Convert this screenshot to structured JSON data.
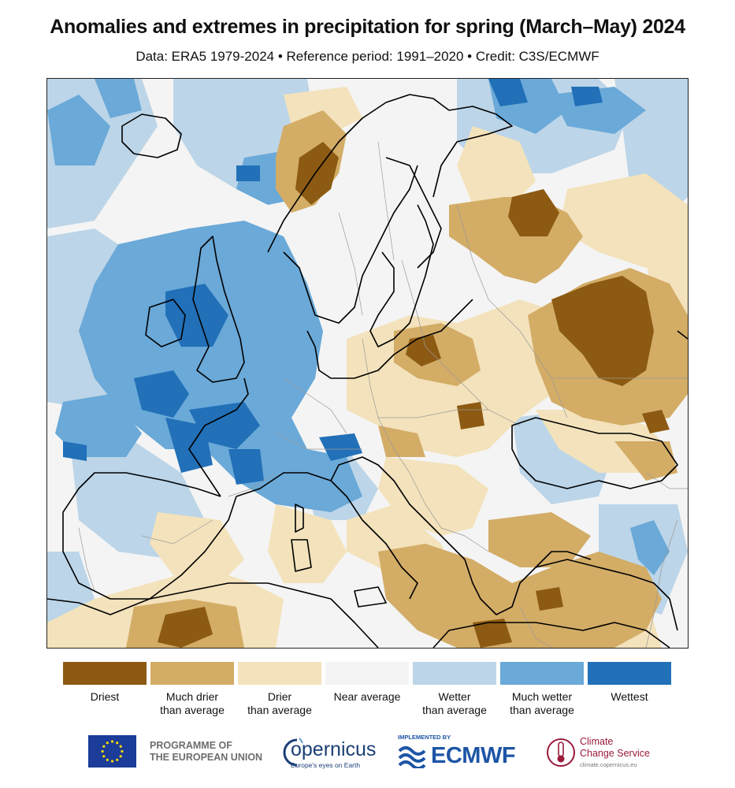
{
  "header": {
    "title": "Anomalies and extremes in precipitation for spring (March–May) 2024",
    "subtitle": "Data: ERA5 1979-2024 • Reference period: 1991–2020 • Credit: C3S/ECMWF"
  },
  "legend": {
    "items": [
      {
        "line1": "Driest",
        "line2": "",
        "color": "#8c5a12"
      },
      {
        "line1": "Much drier",
        "line2": "than average",
        "color": "#d3ac66"
      },
      {
        "line1": "Drier",
        "line2": "than average",
        "color": "#f3e2bb"
      },
      {
        "line1": "Near average",
        "line2": "",
        "color": "#f4f4f4"
      },
      {
        "line1": "Wetter",
        "line2": "than average",
        "color": "#bcd5e8"
      },
      {
        "line1": "Much wetter",
        "line2": "than average",
        "color": "#6aa9d8"
      },
      {
        "line1": "Wettest",
        "line2": "",
        "color": "#2170b8"
      }
    ]
  },
  "logos": {
    "eu_line1": "PROGRAMME OF",
    "eu_line2": "THE EUROPEAN UNION",
    "copernicus_word": "opernicus",
    "copernicus_tagline": "Europe's eyes on Earth",
    "ecmwf_implemented": "IMPLEMENTED BY",
    "ecmwf_word": "ECMWF",
    "c3s_line1": "Climate",
    "c3s_line2": "Change Service",
    "c3s_url": "climate.copernicus.eu"
  },
  "map": {
    "region": "Europe",
    "colors": {
      "driest": "#8c5a12",
      "much_drier": "#d3ac66",
      "drier": "#f3e2bb",
      "near": "#f4f4f4",
      "wetter": "#bcd5e8",
      "much_wetter": "#6aa9d8",
      "wettest": "#2170b8"
    }
  }
}
